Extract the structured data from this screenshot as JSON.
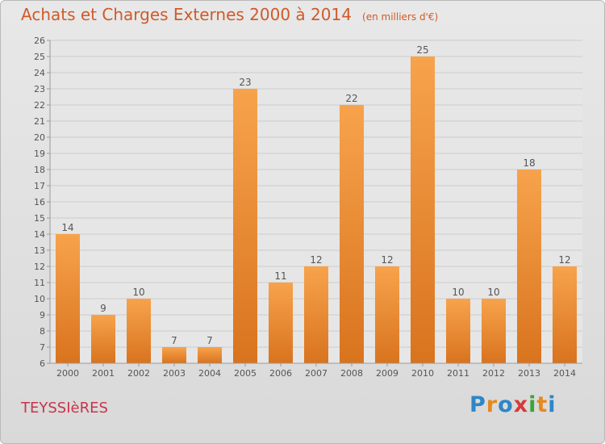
{
  "title": "Achats et Charges Externes 2000 à 2014",
  "subtitle": "(en milliers d'€)",
  "commune": "TEYSSIèRES",
  "logo_text": "Proxiti",
  "colors": {
    "title": "#d05a28",
    "commune": "#c8344a",
    "bar_light": "#f7a34c",
    "bar_dark": "#d9731e",
    "background": "#e0e0e0",
    "logo": [
      "#2e86c8",
      "#e38a1f",
      "#2e86c8",
      "#d63b3b",
      "#3aa53a",
      "#e38a1f",
      "#2e86c8"
    ]
  },
  "chart_data": {
    "type": "bar",
    "title": "Achats et Charges Externes 2000 à 2014",
    "subtitle": "(en milliers d'€)",
    "categories": [
      "2000",
      "2001",
      "2002",
      "2003",
      "2004",
      "2005",
      "2006",
      "2007",
      "2008",
      "2009",
      "2010",
      "2011",
      "2012",
      "2013",
      "2014"
    ],
    "values": [
      14,
      9,
      10,
      7,
      7,
      23,
      11,
      12,
      22,
      12,
      25,
      10,
      10,
      18,
      12
    ],
    "ylim": [
      6,
      26
    ],
    "yticks": [
      6,
      7,
      8,
      9,
      10,
      11,
      12,
      13,
      14,
      15,
      16,
      17,
      18,
      19,
      20,
      21,
      22,
      23,
      24,
      25,
      26
    ],
    "grid": true,
    "xlabel": "",
    "ylabel": ""
  }
}
